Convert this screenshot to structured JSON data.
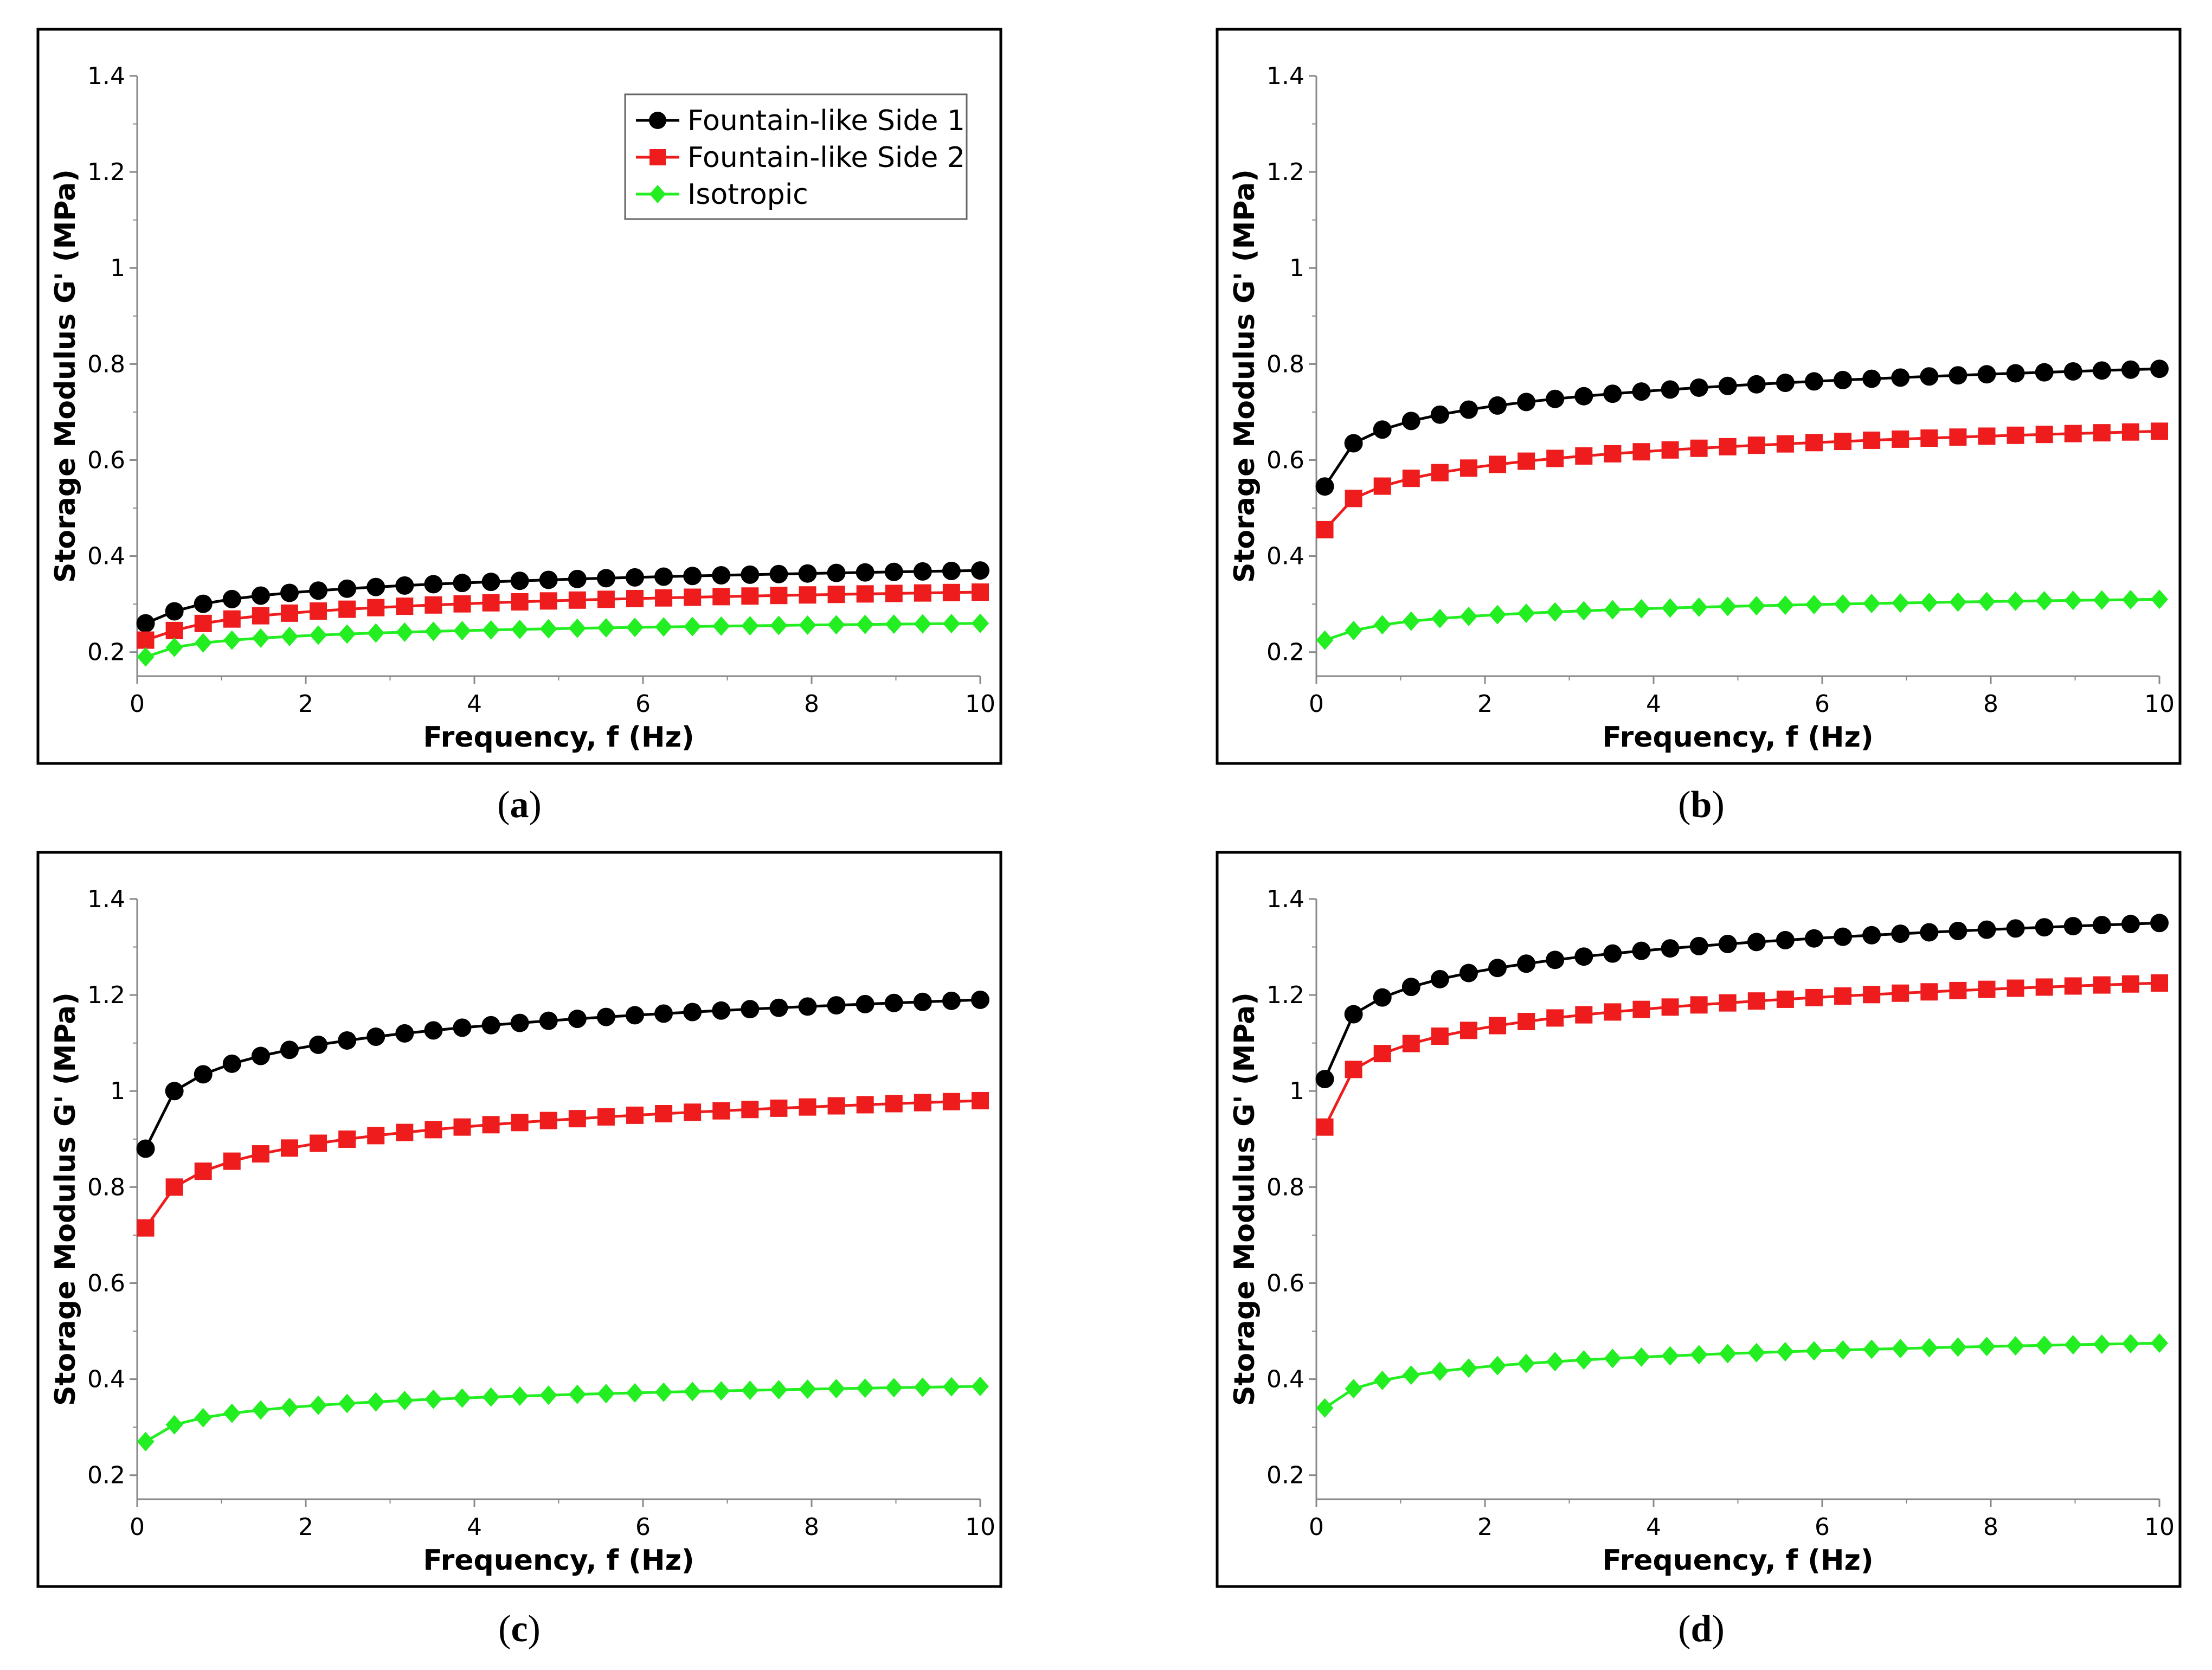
{
  "colors": {
    "side1": "#000000",
    "side2": "#ee1c1c",
    "isotropic": "#22ee22"
  },
  "captions": [
    "a",
    "b",
    "c",
    "d"
  ],
  "chart_data": [
    {
      "type": "line",
      "panel": "a",
      "xlabel": "Frequency, f (Hz)",
      "ylabel": "Storage Modulus G' (MPa)",
      "xlim": [
        0,
        10
      ],
      "ylim": [
        0.15,
        1.4
      ],
      "xticks": [
        "0",
        "2",
        "4",
        "6",
        "8",
        "10"
      ],
      "yticks": [
        "0.2",
        "0.4",
        "0.6",
        "0.8",
        "1",
        "1.2",
        "1.4"
      ],
      "legend": {
        "position": "top-right",
        "entries": [
          "Fountain-like Side 1",
          "Fountain-like Side 2",
          "Isotropic"
        ]
      },
      "series": [
        {
          "name": "Fountain-like Side 1",
          "color": "side1",
          "marker": "circle",
          "start": 0.26,
          "second": 0.285,
          "end": 0.37
        },
        {
          "name": "Fountain-like Side 2",
          "color": "side2",
          "marker": "square",
          "start": 0.225,
          "second": 0.245,
          "end": 0.325
        },
        {
          "name": "Isotropic",
          "color": "isotropic",
          "marker": "diamond",
          "start": 0.19,
          "second": 0.21,
          "end": 0.26
        }
      ]
    },
    {
      "type": "line",
      "panel": "b",
      "xlabel": "Frequency, f (Hz)",
      "ylabel": "Storage Modulus G' (MPa)",
      "xlim": [
        0,
        10
      ],
      "ylim": [
        0.15,
        1.4
      ],
      "xticks": [
        "0",
        "2",
        "4",
        "6",
        "8",
        "10"
      ],
      "yticks": [
        "0.2",
        "0.4",
        "0.6",
        "0.8",
        "1",
        "1.2",
        "1.4"
      ],
      "series": [
        {
          "name": "Fountain-like Side 1",
          "color": "side1",
          "marker": "circle",
          "start": 0.545,
          "second": 0.635,
          "end": 0.79
        },
        {
          "name": "Fountain-like Side 2",
          "color": "side2",
          "marker": "square",
          "start": 0.455,
          "second": 0.52,
          "end": 0.66
        },
        {
          "name": "Isotropic",
          "color": "isotropic",
          "marker": "diamond",
          "start": 0.225,
          "second": 0.245,
          "end": 0.31
        }
      ]
    },
    {
      "type": "line",
      "panel": "c",
      "xlabel": "Frequency, f (Hz)",
      "ylabel": "Storage Modulus G' (MPa)",
      "xlim": [
        0,
        10
      ],
      "ylim": [
        0.15,
        1.4
      ],
      "xticks": [
        "0",
        "2",
        "4",
        "6",
        "8",
        "10"
      ],
      "yticks": [
        "0.2",
        "0.4",
        "0.6",
        "0.8",
        "1",
        "1.2",
        "1.4"
      ],
      "series": [
        {
          "name": "Fountain-like Side 1",
          "color": "side1",
          "marker": "circle",
          "start": 0.88,
          "second": 1.0,
          "end": 1.19
        },
        {
          "name": "Fountain-like Side 2",
          "color": "side2",
          "marker": "square",
          "start": 0.715,
          "second": 0.8,
          "end": 0.98
        },
        {
          "name": "Isotropic",
          "color": "isotropic",
          "marker": "diamond",
          "start": 0.27,
          "second": 0.305,
          "end": 0.385
        }
      ]
    },
    {
      "type": "line",
      "panel": "d",
      "xlabel": "Frequency, f (Hz)",
      "ylabel": "Storage Modulus G' (MPa)",
      "xlim": [
        0,
        10
      ],
      "ylim": [
        0.15,
        1.4
      ],
      "xticks": [
        "0",
        "2",
        "4",
        "6",
        "8",
        "10"
      ],
      "yticks": [
        "0.2",
        "0.4",
        "0.6",
        "0.8",
        "1",
        "1.2",
        "1.4"
      ],
      "series": [
        {
          "name": "Fountain-like Side 1",
          "color": "side1",
          "marker": "circle",
          "start": 1.025,
          "second": 1.16,
          "end": 1.35
        },
        {
          "name": "Fountain-like Side 2",
          "color": "side2",
          "marker": "square",
          "start": 0.925,
          "second": 1.045,
          "end": 1.225
        },
        {
          "name": "Isotropic",
          "color": "isotropic",
          "marker": "diamond",
          "start": 0.34,
          "second": 0.38,
          "end": 0.475
        }
      ]
    }
  ]
}
